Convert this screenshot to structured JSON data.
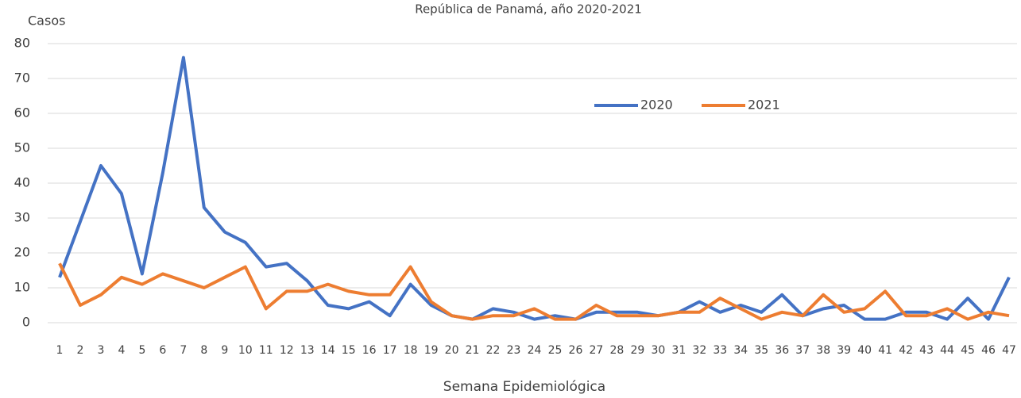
{
  "chart_data": {
    "type": "line",
    "title": "República de Panamá, año 2020-2021",
    "y_label": "Casos",
    "x_label": "Semana Epidemiológica",
    "categories": [
      "1",
      "2",
      "3",
      "4",
      "5",
      "6",
      "7",
      "8",
      "9",
      "10",
      "11",
      "12",
      "13",
      "14",
      "15",
      "16",
      "17",
      "18",
      "19",
      "20",
      "21",
      "22",
      "23",
      "24",
      "25",
      "26",
      "27",
      "28",
      "29",
      "30",
      "31",
      "32",
      "33",
      "34",
      "35",
      "36",
      "37",
      "38",
      "39",
      "40",
      "41",
      "42",
      "43",
      "44",
      "45",
      "46",
      "47"
    ],
    "series": [
      {
        "name": "2020",
        "color": "#4472c4",
        "values": [
          13,
          29,
          45,
          37,
          14,
          43,
          76,
          33,
          26,
          23,
          16,
          17,
          12,
          5,
          4,
          6,
          2,
          11,
          5,
          2,
          1,
          4,
          3,
          1,
          2,
          1,
          3,
          3,
          3,
          2,
          3,
          6,
          3,
          5,
          3,
          8,
          2,
          4,
          5,
          1,
          1,
          3,
          3,
          1,
          7,
          1,
          13
        ]
      },
      {
        "name": "2021",
        "color": "#ed7d31",
        "values": [
          17,
          5,
          8,
          13,
          11,
          14,
          12,
          10,
          13,
          16,
          4,
          9,
          9,
          11,
          9,
          8,
          8,
          16,
          6,
          2,
          1,
          2,
          2,
          4,
          1,
          1,
          5,
          2,
          2,
          2,
          3,
          3,
          7,
          4,
          1,
          3,
          2,
          8,
          3,
          4,
          9,
          2,
          2,
          4,
          1,
          3,
          2
        ]
      }
    ],
    "ylim": [
      0,
      80
    ],
    "yticks": [
      0,
      10,
      20,
      30,
      40,
      50,
      60,
      70,
      80
    ],
    "grid": true
  }
}
